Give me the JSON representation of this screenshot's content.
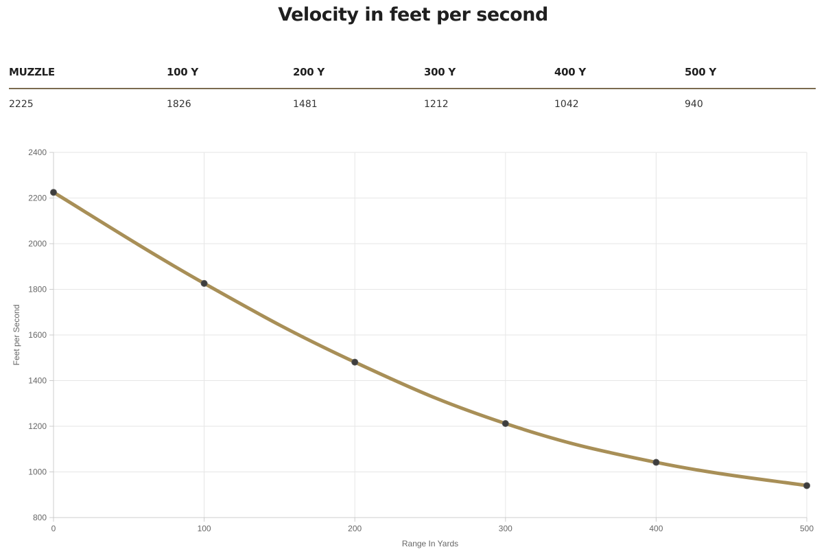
{
  "header": {
    "title": "Velocity in feet per second"
  },
  "table": {
    "columns": [
      "MUZZLE",
      "100 Y",
      "200 Y",
      "300 Y",
      "400 Y",
      "500 Y"
    ],
    "values": [
      "2225",
      "1826",
      "1481",
      "1212",
      "1042",
      "940"
    ]
  },
  "colors": {
    "line": "#a88f57",
    "point": "#3d3d3d",
    "grid": "#e6e6e6",
    "axis": "#cccccc",
    "rule": "#7a6a4f"
  },
  "chart_data": {
    "type": "line",
    "x": [
      0,
      100,
      200,
      300,
      400,
      500
    ],
    "series": [
      {
        "values": [
          2225,
          1826,
          1481,
          1212,
          1042,
          940
        ]
      }
    ],
    "xlabel": "Range In Yards",
    "ylabel": "Feet per Second",
    "xlim": [
      0,
      500
    ],
    "ylim": [
      800,
      2400
    ],
    "xticks": [
      "0",
      "100",
      "200",
      "300",
      "400",
      "500"
    ],
    "yticks": [
      "800",
      "1000",
      "1200",
      "1400",
      "1600",
      "1800",
      "2000",
      "2200",
      "2400"
    ],
    "grid": true,
    "legend": "none"
  }
}
